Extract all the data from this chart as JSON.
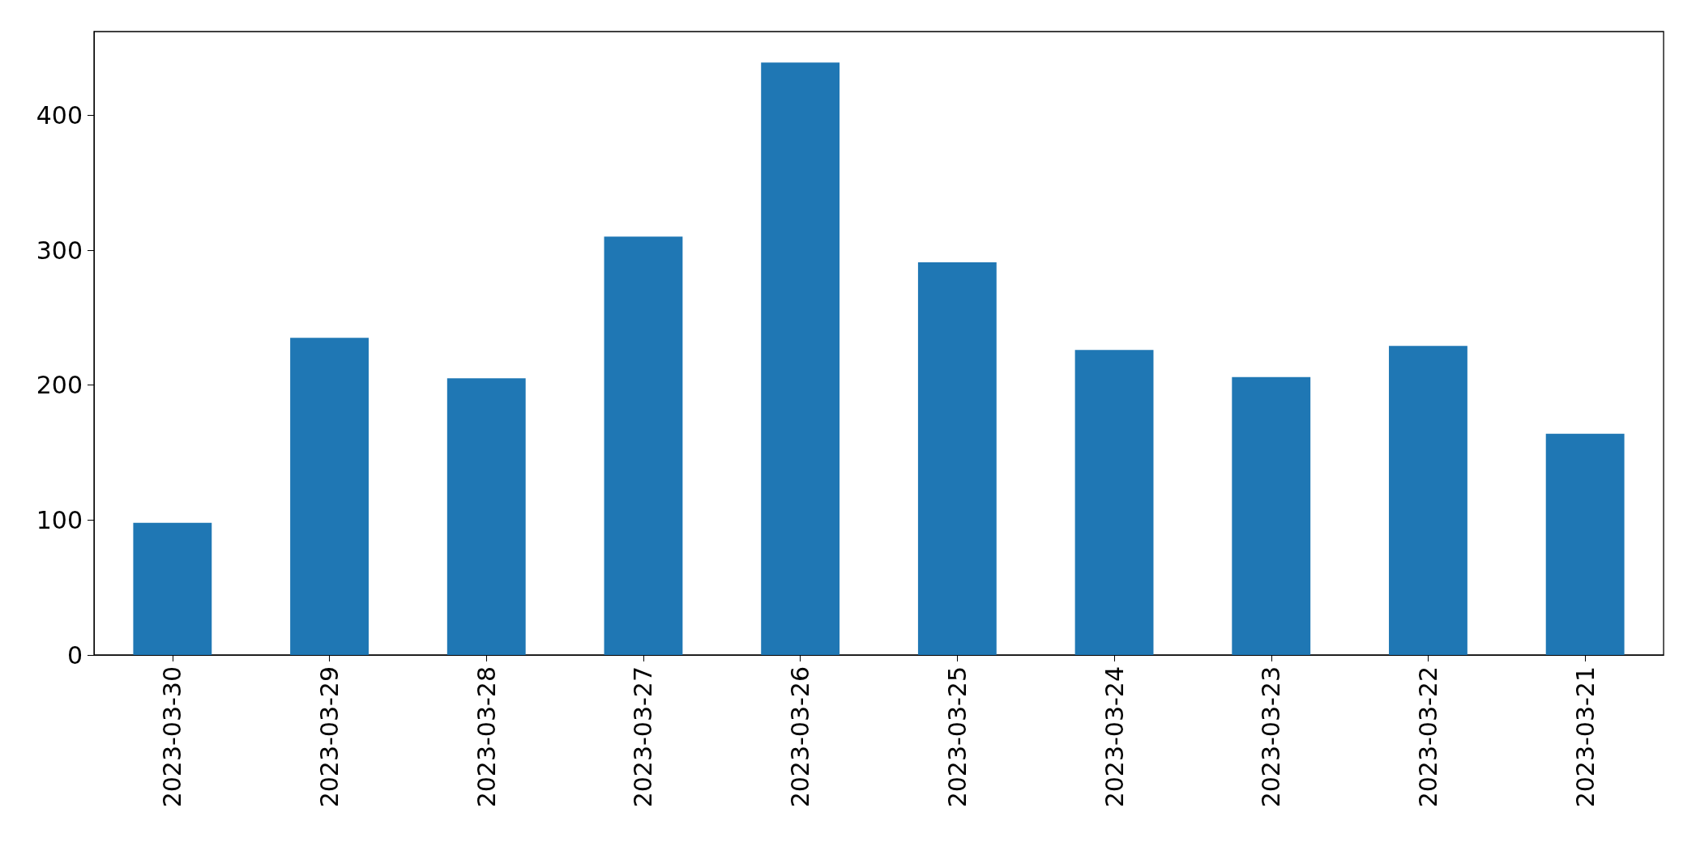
{
  "chart_data": {
    "type": "bar",
    "categories": [
      "2023-03-30",
      "2023-03-29",
      "2023-03-28",
      "2023-03-27",
      "2023-03-26",
      "2023-03-25",
      "2023-03-24",
      "2023-03-23",
      "2023-03-22",
      "2023-03-21"
    ],
    "values": [
      98,
      235,
      205,
      310,
      439,
      291,
      226,
      206,
      229,
      164
    ],
    "color": "#1f77b4",
    "ylim": [
      0,
      462
    ],
    "yticks": [
      0,
      100,
      200,
      300,
      400
    ]
  }
}
